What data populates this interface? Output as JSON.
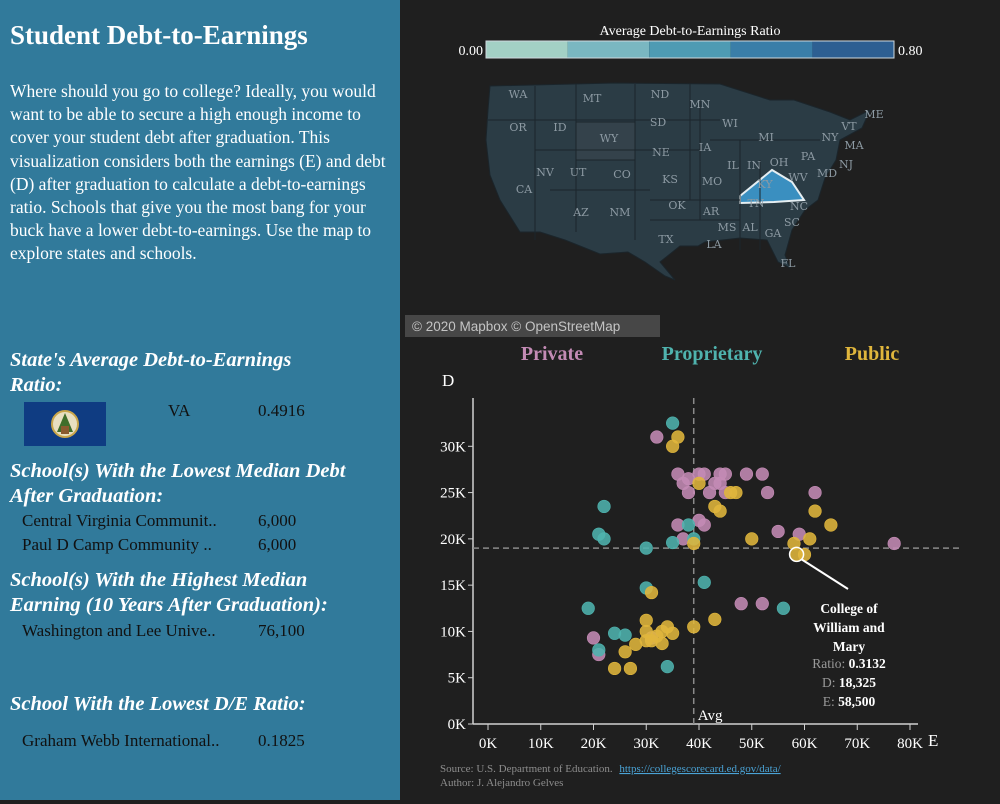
{
  "sidebar": {
    "title": "Student Debt-to-Earnings",
    "intro": "Where should you go to college? Ideally, you would want to be able to secure a high enough income to cover your student debt after graduation.  This visualization considers both the earnings (E) and debt (D) after graduation to calculate a debt-to-earnings ratio. Schools that give you the most bang for your buck have a lower debt-to-earnings. Use the map to explore states and schools.",
    "state_heading": "State's Average Debt-to-Earnings Ratio:",
    "state_code": "VA",
    "state_ratio": "0.4916",
    "lowest_debt_heading": "School(s) With the Lowest Median Debt After Graduation:",
    "lowest_debt": [
      {
        "name": "Central Virginia Communit..",
        "value": "6,000"
      },
      {
        "name": "Paul D Camp Community ..",
        "value": "6,000"
      }
    ],
    "highest_earning_heading": "School(s) With the Highest Median Earning (10 Years After Graduation):",
    "highest_earning": [
      {
        "name": "Washington and Lee Unive..",
        "value": "76,100"
      }
    ],
    "lowest_de_heading": "School With the Lowest D/E Ratio:",
    "lowest_de": [
      {
        "name": "Graham Webb International..",
        "value": "0.1825"
      }
    ]
  },
  "map": {
    "legend_title": "Average Debt-to-Earnings Ratio",
    "legend_min": "0.00",
    "legend_max": "0.80",
    "legend_colors": [
      "#a3d0c5",
      "#7ab7c1",
      "#4e9bb3",
      "#3a7ea8",
      "#2d5f92"
    ],
    "attribution": "© 2020 Mapbox © OpenStreetMap",
    "state_labels": [
      "WA",
      "MT",
      "ND",
      "MN",
      "ME",
      "OR",
      "ID",
      "SD",
      "WI",
      "MI",
      "VT",
      "NY",
      "MA",
      "WY",
      "IA",
      "NE",
      "IL",
      "IN",
      "OH",
      "PA",
      "NJ",
      "NV",
      "UT",
      "CO",
      "KS",
      "MO",
      "KY",
      "WV",
      "MD",
      "CA",
      "AZ",
      "NM",
      "OK",
      "AR",
      "TN",
      "NC",
      "SC",
      "MS",
      "AL",
      "GA",
      "TX",
      "LA",
      "FL"
    ],
    "highlight_state": "VA"
  },
  "chart_data": {
    "type": "scatter",
    "xlabel": "E",
    "ylabel": "D",
    "xlim": [
      0,
      80000
    ],
    "ylim": [
      0,
      35000
    ],
    "xticks": [
      "0K",
      "10K",
      "20K",
      "30K",
      "40K",
      "50K",
      "60K",
      "70K",
      "80K"
    ],
    "yticks": [
      "0K",
      "5K",
      "10K",
      "15K",
      "20K",
      "25K",
      "30K"
    ],
    "avg_label": "Avg",
    "avg_x": 39000,
    "avg_y": 19000,
    "series": [
      {
        "name": "Private",
        "color": "#c48bb5",
        "points": [
          [
            32000,
            31000
          ],
          [
            36000,
            27000
          ],
          [
            38000,
            26500
          ],
          [
            40000,
            27000
          ],
          [
            41000,
            27000
          ],
          [
            44000,
            27000
          ],
          [
            45000,
            27000
          ],
          [
            49000,
            27000
          ],
          [
            52000,
            27000
          ],
          [
            37000,
            26000
          ],
          [
            38000,
            25000
          ],
          [
            42000,
            25000
          ],
          [
            43000,
            26000
          ],
          [
            44000,
            26000
          ],
          [
            45000,
            25000
          ],
          [
            53000,
            25000
          ],
          [
            62000,
            25000
          ],
          [
            36000,
            21500
          ],
          [
            40000,
            22000
          ],
          [
            41000,
            21500
          ],
          [
            37000,
            20000
          ],
          [
            55000,
            20800
          ],
          [
            59000,
            20500
          ],
          [
            77000,
            19500
          ],
          [
            20000,
            9300
          ],
          [
            21000,
            7500
          ],
          [
            31000,
            9300
          ],
          [
            48000,
            13000
          ],
          [
            52000,
            13000
          ]
        ]
      },
      {
        "name": "Proprietary",
        "color": "#4fb3ae",
        "points": [
          [
            35000,
            32500
          ],
          [
            22000,
            23500
          ],
          [
            21000,
            20500
          ],
          [
            22000,
            20000
          ],
          [
            30000,
            19000
          ],
          [
            35000,
            19600
          ],
          [
            38000,
            21500
          ],
          [
            39000,
            20000
          ],
          [
            30000,
            14700
          ],
          [
            41000,
            15300
          ],
          [
            19000,
            12500
          ],
          [
            56000,
            12500
          ],
          [
            24000,
            9800
          ],
          [
            26000,
            9600
          ],
          [
            21000,
            8000
          ],
          [
            34000,
            6200
          ]
        ]
      },
      {
        "name": "Public",
        "color": "#e0b63c",
        "points": [
          [
            35000,
            30000
          ],
          [
            36000,
            31000
          ],
          [
            40000,
            26000
          ],
          [
            46000,
            25000
          ],
          [
            47000,
            25000
          ],
          [
            43000,
            23500
          ],
          [
            44000,
            23000
          ],
          [
            62000,
            23000
          ],
          [
            65000,
            21500
          ],
          [
            39000,
            19500
          ],
          [
            50000,
            20000
          ],
          [
            58000,
            19500
          ],
          [
            61000,
            20000
          ],
          [
            60000,
            18300
          ],
          [
            58500,
            18325
          ],
          [
            31000,
            14200
          ],
          [
            30000,
            11200
          ],
          [
            33000,
            10000
          ],
          [
            34000,
            10500
          ],
          [
            30000,
            10000
          ],
          [
            32000,
            9500
          ],
          [
            31000,
            9000
          ],
          [
            33000,
            8700
          ],
          [
            39000,
            10500
          ],
          [
            43000,
            11300
          ],
          [
            28000,
            8600
          ],
          [
            26000,
            7800
          ],
          [
            24000,
            6000
          ],
          [
            27000,
            6000
          ],
          [
            30000,
            9000
          ],
          [
            35000,
            9800
          ]
        ]
      }
    ],
    "annotation": {
      "name": "College of William and Mary",
      "ratio_label": "Ratio:",
      "ratio": "0.3132",
      "d_label": "D:",
      "d": "18,325",
      "e_label": "E:",
      "e": "58,500",
      "x": 58500,
      "y": 18325
    }
  },
  "footer": {
    "source_prefix": "Source: U.S. Department of Education.",
    "source_link": "https://collegescorecard.ed.gov/data/",
    "author": "Author: J. Alejandro Gelves"
  }
}
